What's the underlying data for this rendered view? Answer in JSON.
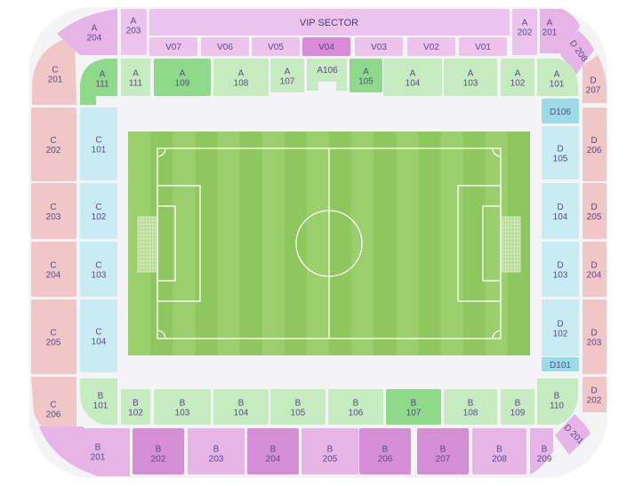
{
  "colors": {
    "vip_light": "#ecc3ec",
    "vip_selected": "#d98ad9",
    "lower_green": "#c7ebc0",
    "lower_green_dark": "#8fd98a",
    "side_blue": "#c8ecf2",
    "side_blue_dark": "#9bdbe8",
    "upper_pink": "#f1c6c6",
    "upper_violet": "#e6b4e6",
    "upper_violet_dark": "#d68ed6",
    "pitch": "#8fc75f",
    "pitch_stripe": "#9bcf6d",
    "label": "#5a4a8a"
  },
  "vip": {
    "title": "VIP SECTOR",
    "sectors": [
      "V07",
      "V06",
      "V05",
      "V04",
      "V03",
      "V02",
      "V01"
    ],
    "selected": "V04"
  },
  "stand_a_upper": [
    {
      "l1": "A",
      "l2": "204"
    },
    {
      "l1": "A",
      "l2": "203"
    },
    {
      "l1": "A",
      "l2": "202"
    },
    {
      "l1": "A",
      "l2": "201"
    }
  ],
  "stand_a_lower": [
    {
      "l1": "A",
      "l2": "111",
      "tone": "dark"
    },
    {
      "l1": "A",
      "l2": "111",
      "tone": "light"
    },
    {
      "l1": "A",
      "l2": "109",
      "tone": "dark"
    },
    {
      "l1": "A",
      "l2": "108",
      "tone": "light"
    },
    {
      "l1": "A",
      "l2": "107",
      "tone": "light"
    },
    {
      "l1": "A106",
      "l2": "",
      "tone": "light"
    },
    {
      "l1": "A",
      "l2": "105",
      "tone": "dark"
    },
    {
      "l1": "A",
      "l2": "104",
      "tone": "light"
    },
    {
      "l1": "A",
      "l2": "103",
      "tone": "light"
    },
    {
      "l1": "A",
      "l2": "102",
      "tone": "light"
    },
    {
      "l1": "A",
      "l2": "101",
      "tone": "light"
    }
  ],
  "stand_c_upper": [
    {
      "l1": "C",
      "l2": "201"
    },
    {
      "l1": "C",
      "l2": "202"
    },
    {
      "l1": "C",
      "l2": "203"
    },
    {
      "l1": "C",
      "l2": "204"
    },
    {
      "l1": "C",
      "l2": "205"
    },
    {
      "l1": "C",
      "l2": "206"
    }
  ],
  "stand_c_lower": [
    {
      "l1": "C",
      "l2": "101"
    },
    {
      "l1": "C",
      "l2": "102"
    },
    {
      "l1": "C",
      "l2": "103"
    },
    {
      "l1": "C",
      "l2": "104"
    }
  ],
  "stand_d_upper": [
    {
      "l1": "D",
      "l2": "207"
    },
    {
      "l1": "D",
      "l2": "206"
    },
    {
      "l1": "D",
      "l2": "205"
    },
    {
      "l1": "D",
      "l2": "204"
    },
    {
      "l1": "D",
      "l2": "203"
    },
    {
      "l1": "D",
      "l2": "202"
    }
  ],
  "stand_d_lower": [
    {
      "l1": "D106",
      "l2": "",
      "small": true
    },
    {
      "l1": "D",
      "l2": "105"
    },
    {
      "l1": "D",
      "l2": "104"
    },
    {
      "l1": "D",
      "l2": "103"
    },
    {
      "l1": "D",
      "l2": "102"
    },
    {
      "l1": "D101",
      "l2": "",
      "small": true
    }
  ],
  "corner_labels": {
    "d208": "D 208",
    "d201": "D 201"
  },
  "stand_b_lower": [
    {
      "l1": "B",
      "l2": "101",
      "tone": "light"
    },
    {
      "l1": "B",
      "l2": "102",
      "tone": "light"
    },
    {
      "l1": "B",
      "l2": "103",
      "tone": "light"
    },
    {
      "l1": "B",
      "l2": "104",
      "tone": "light"
    },
    {
      "l1": "B",
      "l2": "105",
      "tone": "light"
    },
    {
      "l1": "B",
      "l2": "106",
      "tone": "light"
    },
    {
      "l1": "B",
      "l2": "107",
      "tone": "dark"
    },
    {
      "l1": "B",
      "l2": "108",
      "tone": "light"
    },
    {
      "l1": "B",
      "l2": "109",
      "tone": "light"
    },
    {
      "l1": "B",
      "l2": "110",
      "tone": "light"
    }
  ],
  "stand_b_upper": [
    {
      "l1": "B",
      "l2": "201",
      "tone": "light"
    },
    {
      "l1": "B",
      "l2": "202",
      "tone": "dark"
    },
    {
      "l1": "B",
      "l2": "203",
      "tone": "light"
    },
    {
      "l1": "B",
      "l2": "204",
      "tone": "dark"
    },
    {
      "l1": "B",
      "l2": "205",
      "tone": "light"
    },
    {
      "l1": "B",
      "l2": "206",
      "tone": "dark"
    },
    {
      "l1": "B",
      "l2": "207",
      "tone": "dark"
    },
    {
      "l1": "B",
      "l2": "208",
      "tone": "light"
    },
    {
      "l1": "B",
      "l2": "209",
      "tone": "light"
    }
  ]
}
